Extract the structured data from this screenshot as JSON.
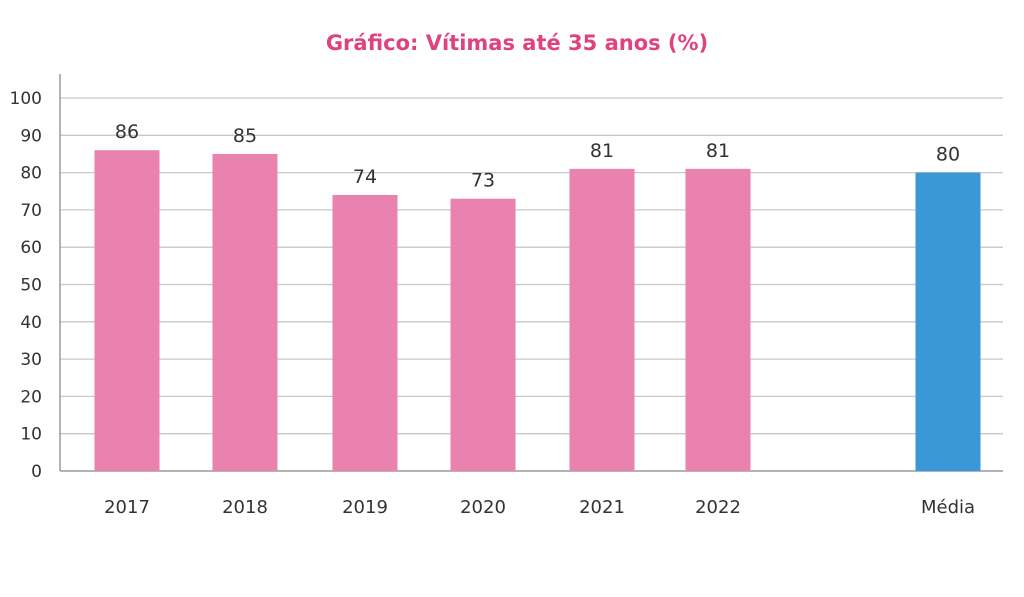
{
  "chart_data": {
    "type": "bar",
    "title": "Gráfico: Vítimas até 35 anos (%)",
    "categories": [
      "2017",
      "2018",
      "2019",
      "2020",
      "2021",
      "2022",
      "Média"
    ],
    "values": [
      86,
      85,
      74,
      73,
      81,
      81,
      80
    ],
    "data_labels": [
      "86",
      "85",
      "74",
      "73",
      "81",
      "81",
      "80"
    ],
    "y_ticks": [
      "0",
      "10",
      "20",
      "30",
      "40",
      "50",
      "60",
      "70",
      "80",
      "90",
      "100"
    ],
    "ylim": [
      0,
      100
    ],
    "xlabel": "",
    "ylabel": "",
    "grid": true,
    "colors": {
      "title": "#e0417f",
      "bar": "#ea82b0",
      "average_bar": "#3a98d6"
    }
  }
}
